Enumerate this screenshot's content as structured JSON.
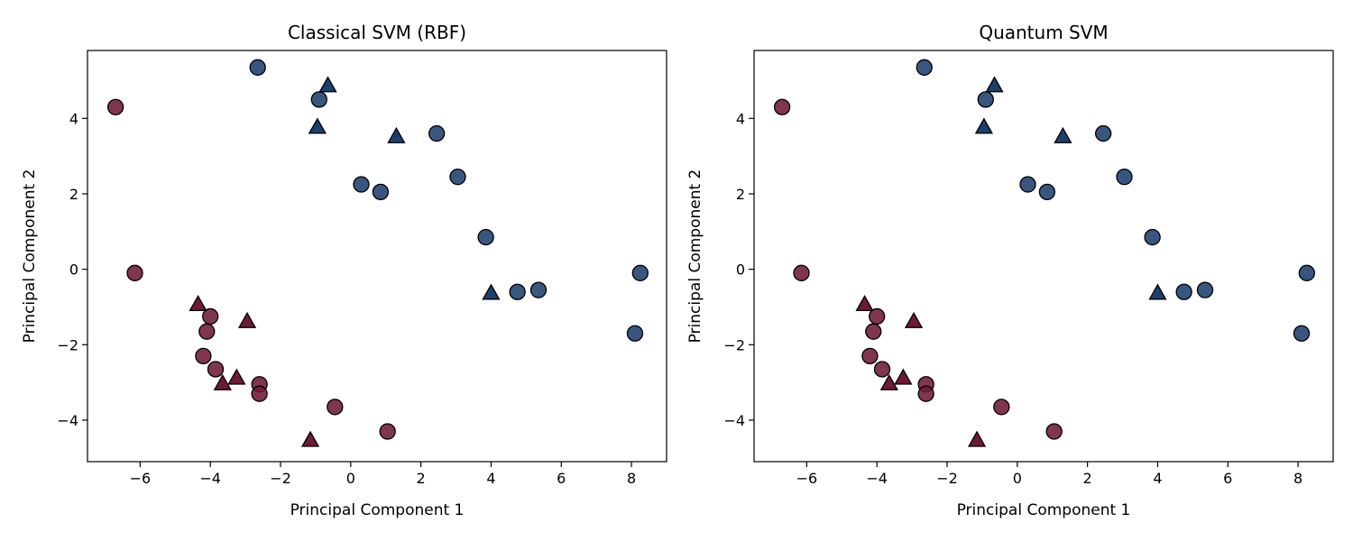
{
  "chart_data": [
    {
      "type": "scatter",
      "title": "Classical SVM (RBF)",
      "xlabel": "Principal Component 1",
      "ylabel": "Principal Component 2",
      "xlim": [
        -7.5,
        9.0
      ],
      "ylim": [
        -5.1,
        5.8
      ],
      "xticks": [
        -6,
        -4,
        -2,
        0,
        2,
        4,
        6,
        8
      ],
      "yticks": [
        -4,
        -2,
        0,
        2,
        4
      ],
      "grid": false,
      "colors": {
        "class0": "#6e1a35",
        "class1": "#1c3f6e",
        "edge": "#000000"
      },
      "series": [
        {
          "marker": "circle",
          "class": 0,
          "points": [
            [
              -6.7,
              4.3
            ],
            [
              -6.15,
              -0.1
            ],
            [
              -4.0,
              -1.25
            ],
            [
              -4.1,
              -1.65
            ],
            [
              -4.2,
              -2.3
            ],
            [
              -3.85,
              -2.65
            ],
            [
              -2.6,
              -3.05
            ],
            [
              -2.6,
              -3.3
            ],
            [
              -0.45,
              -3.65
            ],
            [
              1.05,
              -4.3
            ]
          ]
        },
        {
          "marker": "circle",
          "class": 1,
          "points": [
            [
              -2.65,
              5.35
            ],
            [
              -0.9,
              4.5
            ],
            [
              2.45,
              3.6
            ],
            [
              0.3,
              2.25
            ],
            [
              0.85,
              2.05
            ],
            [
              3.05,
              2.45
            ],
            [
              3.85,
              0.85
            ],
            [
              4.75,
              -0.6
            ],
            [
              5.35,
              -0.55
            ],
            [
              8.25,
              -0.1
            ],
            [
              8.1,
              -1.7
            ]
          ]
        },
        {
          "marker": "triangle",
          "class": 0,
          "points": [
            [
              -4.35,
              -0.95
            ],
            [
              -2.95,
              -1.4
            ],
            [
              -3.65,
              -3.05
            ],
            [
              -3.25,
              -2.9
            ],
            [
              -1.15,
              -4.55
            ]
          ]
        },
        {
          "marker": "triangle",
          "class": 1,
          "points": [
            [
              -0.65,
              4.85
            ],
            [
              -0.95,
              3.75
            ],
            [
              1.3,
              3.5
            ],
            [
              4.0,
              -0.65
            ]
          ]
        }
      ]
    },
    {
      "type": "scatter",
      "title": "Quantum SVM",
      "xlabel": "Principal Component 1",
      "ylabel": "Principal Component 2",
      "xlim": [
        -7.5,
        9.0
      ],
      "ylim": [
        -5.1,
        5.8
      ],
      "xticks": [
        -6,
        -4,
        -2,
        0,
        2,
        4,
        6,
        8
      ],
      "yticks": [
        -4,
        -2,
        0,
        2,
        4
      ],
      "grid": false,
      "colors": {
        "class0": "#6e1a35",
        "class1": "#1c3f6e",
        "edge": "#000000"
      },
      "series": [
        {
          "marker": "circle",
          "class": 0,
          "points": [
            [
              -6.7,
              4.3
            ],
            [
              -6.15,
              -0.1
            ],
            [
              -4.0,
              -1.25
            ],
            [
              -4.1,
              -1.65
            ],
            [
              -4.2,
              -2.3
            ],
            [
              -3.85,
              -2.65
            ],
            [
              -2.6,
              -3.05
            ],
            [
              -2.6,
              -3.3
            ],
            [
              -0.45,
              -3.65
            ],
            [
              1.05,
              -4.3
            ]
          ]
        },
        {
          "marker": "circle",
          "class": 1,
          "points": [
            [
              -2.65,
              5.35
            ],
            [
              -0.9,
              4.5
            ],
            [
              2.45,
              3.6
            ],
            [
              0.3,
              2.25
            ],
            [
              0.85,
              2.05
            ],
            [
              3.05,
              2.45
            ],
            [
              3.85,
              0.85
            ],
            [
              4.75,
              -0.6
            ],
            [
              5.35,
              -0.55
            ],
            [
              8.25,
              -0.1
            ],
            [
              8.1,
              -1.7
            ]
          ]
        },
        {
          "marker": "triangle",
          "class": 0,
          "points": [
            [
              -4.35,
              -0.95
            ],
            [
              -2.95,
              -1.4
            ],
            [
              -3.65,
              -3.05
            ],
            [
              -3.25,
              -2.9
            ],
            [
              -1.15,
              -4.55
            ]
          ]
        },
        {
          "marker": "triangle",
          "class": 1,
          "points": [
            [
              -0.65,
              4.85
            ],
            [
              -0.95,
              3.75
            ],
            [
              1.3,
              3.5
            ],
            [
              4.0,
              -0.65
            ]
          ]
        }
      ]
    }
  ]
}
